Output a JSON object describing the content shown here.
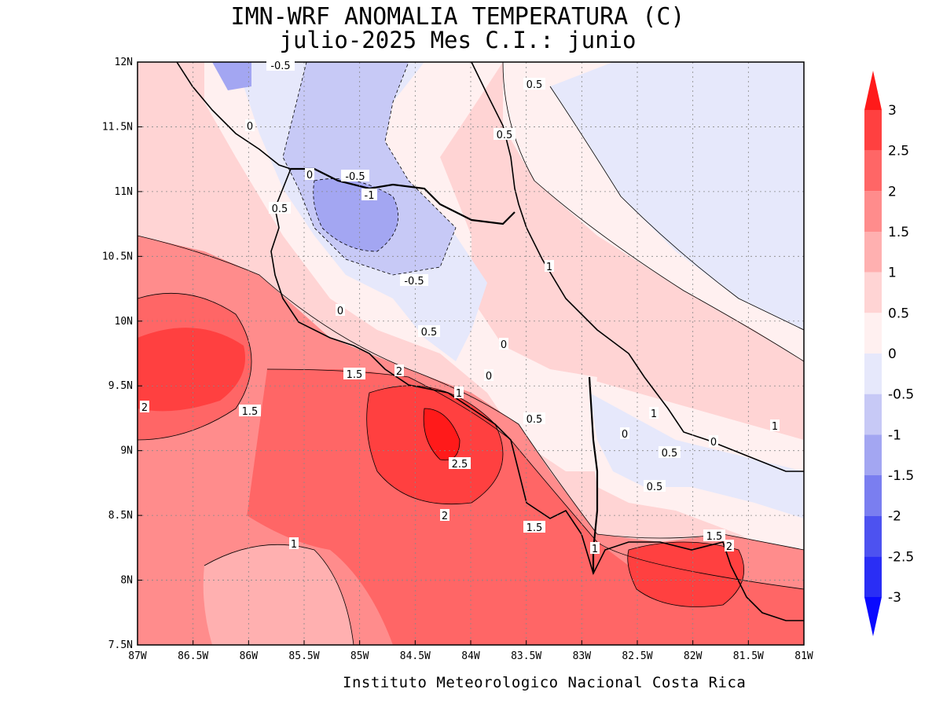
{
  "title": {
    "line1": "IMN-WRF  ANOMALIA TEMPERATURA (C)",
    "line2": "julio-2025 Mes C.I.: junio"
  },
  "credit": "Instituto Meteorologico Nacional Costa Rica",
  "map": {
    "region": "Costa Rica",
    "lon_range": [
      -87,
      -81
    ],
    "lat_range": [
      7.5,
      12
    ],
    "x_ticks": [
      "87W",
      "86.5W",
      "86W",
      "85.5W",
      "85W",
      "84.5W",
      "84W",
      "83.5W",
      "83W",
      "82.5W",
      "82W",
      "81.5W",
      "81W"
    ],
    "y_ticks": [
      "7.5N",
      "8N",
      "8.5N",
      "9N",
      "9.5N",
      "10N",
      "10.5N",
      "11N",
      "11.5N",
      "12N"
    ],
    "grid": "dotted"
  },
  "colorbar": {
    "labels": [
      "3",
      "2.5",
      "2",
      "1.5",
      "1",
      "0.5",
      "0",
      "-0.5",
      "-1",
      "-1.5",
      "-2",
      "-2.5",
      "-3"
    ],
    "colors": [
      "#ff1a1a",
      "#ff4040",
      "#ff6666",
      "#ff8c8c",
      "#ffb0b0",
      "#ffd4d4",
      "#fff0f0",
      "#e6e8fb",
      "#c7c9f6",
      "#a3a6f2",
      "#7a7ef0",
      "#4d52f0",
      "#2a2ef5",
      "#0a0aff"
    ]
  },
  "contour_labels": [
    "-0.5",
    "0.5",
    "0",
    "0",
    "-0.5",
    "-1",
    "0.5",
    "0.5",
    "1",
    "-0.5",
    "0",
    "0.5",
    "0",
    "0",
    "1.5",
    "2",
    "1",
    "2",
    "1.5",
    "0.5",
    "0",
    "1",
    "0",
    "0.5",
    "1",
    "2.5",
    "0.5",
    "2",
    "1.5",
    "1",
    "1",
    "1.5",
    "2"
  ],
  "colors": {
    "frame": "#000000",
    "background": "#ffffff"
  }
}
